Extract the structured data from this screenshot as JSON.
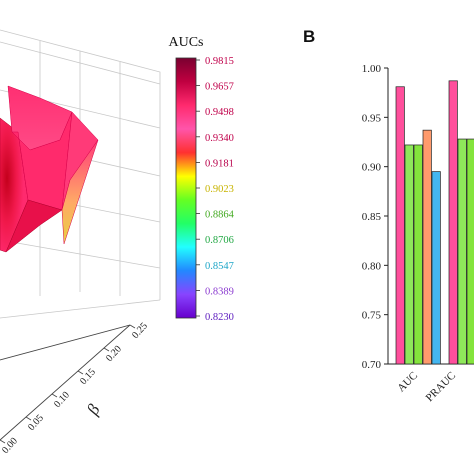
{
  "chart_data": [
    {
      "type": "surface3d",
      "colorbar": {
        "title": "AUCs",
        "ticks": [
          "0.9815",
          "0.9657",
          "0.9498",
          "0.9340",
          "0.9181",
          "0.9023",
          "0.8864",
          "0.8706",
          "0.8547",
          "0.8389",
          "0.8230"
        ],
        "tick_colors": [
          "#c0004a",
          "#c0004a",
          "#c0004a",
          "#c0004a",
          "#b8004a",
          "#c8b400",
          "#44aa22",
          "#22a844",
          "#1ea6c8",
          "#8c3cd0",
          "#6020c0"
        ],
        "gradient_stops": [
          "#7a0030",
          "#c00040",
          "#ff2a6e",
          "#ff55aa",
          "#ff3030",
          "#ffff00",
          "#66ff22",
          "#22ff66",
          "#22ffff",
          "#2288ff",
          "#8844ff",
          "#6600cc"
        ]
      },
      "beta_axis": {
        "label": "β",
        "ticks": [
          "0.25",
          "0.20",
          "0.15",
          "0.10",
          "0.05",
          "0.00"
        ]
      }
    },
    {
      "type": "bar",
      "panel_label": "B",
      "categories": [
        "AUC",
        "PRAUC"
      ],
      "series_colors": [
        "#ff4f9c",
        "#8ee85a",
        "#84e43c",
        "#ff9a6c",
        "#44b6f0"
      ],
      "series": [
        {
          "values": [
            0.981,
            0.987
          ]
        },
        {
          "values": [
            0.922,
            0.928
          ]
        },
        {
          "values": [
            0.922,
            0.928
          ]
        },
        {
          "values": [
            0.937,
            null
          ]
        },
        {
          "values": [
            0.895,
            null
          ]
        }
      ],
      "ylim": [
        0.7,
        1.0
      ],
      "yticks": [
        "0.70",
        "0.75",
        "0.80",
        "0.85",
        "0.90",
        "0.95",
        "1.00"
      ],
      "grid": false
    }
  ]
}
